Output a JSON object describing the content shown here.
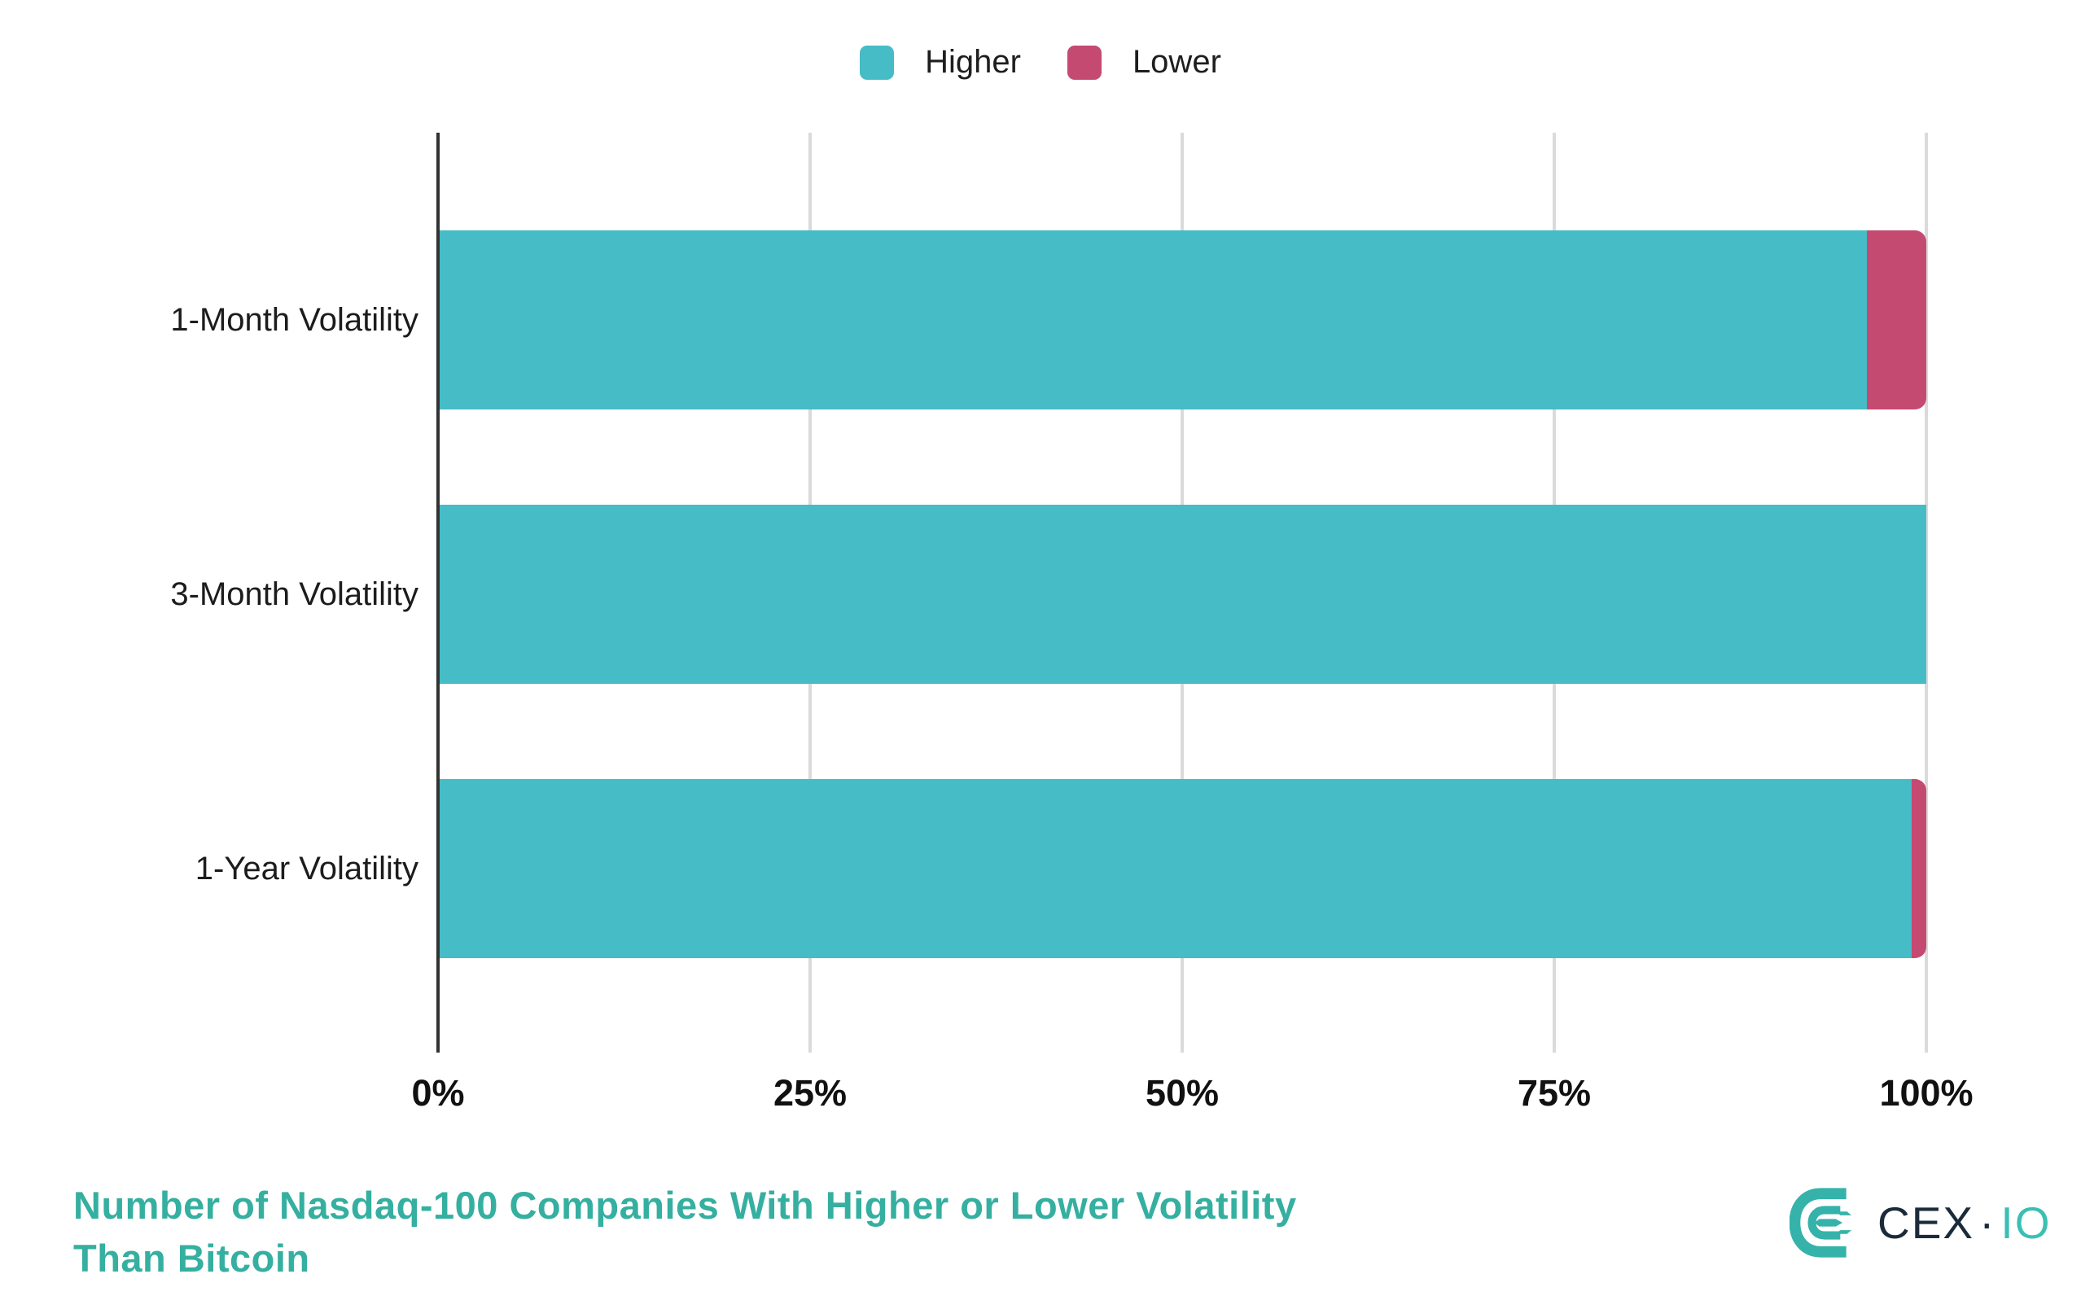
{
  "legend": {
    "items": [
      {
        "id": "higher",
        "label": "Higher",
        "color": "#45BCC6"
      },
      {
        "id": "lower",
        "label": "Lower",
        "color": "#C44A71"
      }
    ]
  },
  "chart_data": {
    "type": "bar",
    "orientation": "horizontal",
    "stacked": true,
    "title": "Number of Nasdaq-100 Companies With Higher or Lower Volatility Than Bitcoin",
    "categories": [
      "1-Month Volatility",
      "3-Month Volatility",
      "1-Year Volatility"
    ],
    "series": [
      {
        "name": "Higher",
        "color": "#45BCC6",
        "values": [
          96,
          100,
          99
        ]
      },
      {
        "name": "Lower",
        "color": "#C44A71",
        "values": [
          4,
          0,
          1
        ]
      }
    ],
    "x_tick_labels": [
      "0%",
      "25%",
      "50%",
      "75%",
      "100%"
    ],
    "x_tick_values": [
      0,
      25,
      50,
      75,
      100
    ],
    "xlim": [
      0,
      100
    ],
    "grid": "vertical-light",
    "gridline_color": "#DADADA",
    "axis_color": "#333333",
    "legend_position": "top-center"
  },
  "footer": {
    "title_line1": "Number of Nasdaq-100 Companies With Higher or Lower Volatility",
    "title_line2": "Than Bitcoin",
    "title_color": "#35AFA0",
    "logo": {
      "text_primary": "CEX",
      "separator": "·",
      "text_secondary": "IO",
      "primary_color": "#1B2B3A",
      "secondary_color": "#3BBFB4",
      "icon_color": "#35B3AA"
    }
  }
}
